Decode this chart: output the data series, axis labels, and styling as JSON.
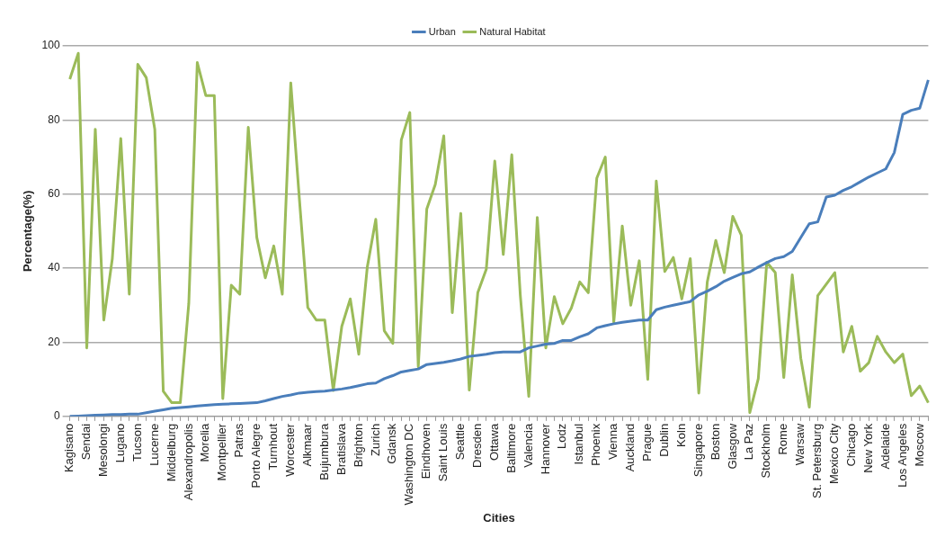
{
  "chart_data": {
    "type": "line",
    "xlabel": "Cities",
    "ylabel": "Percentage(%)",
    "categories": [
      "Kagisano",
      null,
      "Sendai",
      null,
      "Mesolongi",
      null,
      "Lugano",
      null,
      "Tucson",
      null,
      "Lucerne",
      null,
      "Middelburg",
      null,
      "Alexandropolis",
      null,
      "Morelia",
      null,
      "Montpellier",
      null,
      "Patras",
      null,
      "Porto Alegre",
      null,
      "Turnhout",
      null,
      "Worcester",
      null,
      "Alkmaar",
      null,
      "Bujumbura",
      null,
      "Bratislava",
      null,
      "Brighton",
      null,
      "Zurich",
      null,
      "Gdansk",
      null,
      "Washington DC",
      null,
      "Eindhoven",
      null,
      "Saint Louis",
      null,
      "Seattle",
      null,
      "Dresden",
      null,
      "Ottawa",
      null,
      "Baltimore",
      null,
      "Valencia",
      null,
      "Hannover",
      null,
      "Lodz",
      null,
      "Istanbul",
      null,
      "Phoenix",
      null,
      "Vienna",
      null,
      "Auckland",
      null,
      "Prague",
      null,
      "Dublin",
      null,
      "Koln",
      null,
      "Singapore",
      null,
      "Boston",
      null,
      "Glasgow",
      null,
      "La Paz",
      null,
      "Stockholm",
      null,
      "Rome",
      null,
      "Warsaw",
      null,
      "St. Petersburg",
      null,
      "Mexico City",
      null,
      "Chicago",
      null,
      "New York",
      null,
      "Adelaide",
      null,
      "Los Angeles",
      null,
      "Moscow",
      null
    ],
    "series": [
      {
        "name": "Urban",
        "color": "#4a7ebb",
        "values": [
          0,
          0.1,
          0.2,
          0.3,
          0.4,
          0.5,
          0.5,
          0.6,
          0.6,
          1,
          1.4,
          1.8,
          2.2,
          2.4,
          2.6,
          2.8,
          3,
          3.2,
          3.3,
          3.4,
          3.5,
          3.6,
          3.7,
          4.2,
          4.8,
          5.4,
          5.8,
          6.3,
          6.5,
          6.7,
          6.8,
          7.1,
          7.4,
          7.8,
          8.3,
          8.8,
          9,
          10.2,
          11,
          12,
          12.4,
          12.8,
          14,
          14.3,
          14.6,
          15,
          15.5,
          16.2,
          16.5,
          16.8,
          17.2,
          17.4,
          17.4,
          17.4,
          18.5,
          19,
          19.5,
          19.7,
          20.5,
          20.5,
          21.5,
          22.3,
          23.9,
          24.5,
          25,
          25.4,
          25.7,
          26,
          26,
          28.8,
          29.5,
          30,
          30.5,
          31,
          32.8,
          33.8,
          35,
          36.5,
          37.5,
          38.5,
          39,
          40.3,
          41.5,
          42.6,
          43.1,
          44.5,
          48.3,
          52,
          52.5,
          59.2,
          59.7,
          61,
          62,
          63.3,
          64.6,
          65.7,
          66.8,
          71.2,
          81.5,
          82.6,
          83.2,
          90.8
        ]
      },
      {
        "name": "Natural Habitat",
        "color": "#9bbb59",
        "values": [
          91,
          98,
          18.5,
          77.5,
          26,
          42.5,
          75,
          33,
          95,
          91.4,
          77.5,
          6.8,
          3.7,
          3.7,
          30.5,
          95.5,
          86.6,
          86.6,
          4.8,
          35.4,
          33,
          78,
          48.3,
          37.4,
          46,
          33,
          90,
          59,
          29.4,
          26,
          26,
          7,
          24.3,
          31.7,
          16.8,
          40.3,
          53.2,
          23.1,
          19.7,
          74.6,
          82,
          13.4,
          56,
          62.6,
          75.7,
          28,
          54.8,
          7.1,
          33.4,
          39.7,
          68.9,
          43.7,
          70.6,
          32.8,
          5.4,
          53.7,
          18.5,
          32.3,
          25,
          29.2,
          36.3,
          33.4,
          64.3,
          70,
          25.4,
          51.4,
          30,
          42,
          10,
          63.5,
          39.1,
          42.9,
          31.7,
          42.6,
          6.3,
          36.3,
          47.5,
          38.8,
          54,
          48.9,
          1,
          10.2,
          41.6,
          38.8,
          10.5,
          38.2,
          15.7,
          2.5,
          32.6,
          35.7,
          38.8,
          17.4,
          24.3,
          12.2,
          14.5,
          21.6,
          17.4,
          14.5,
          16.8,
          5.6,
          8.2,
          3.7
        ]
      }
    ],
    "ylim": [
      0,
      100
    ],
    "yticks": [
      0,
      20,
      40,
      60,
      80,
      100
    ],
    "grid": "y",
    "legend": "top",
    "marker": "none",
    "line_style": "solid"
  }
}
